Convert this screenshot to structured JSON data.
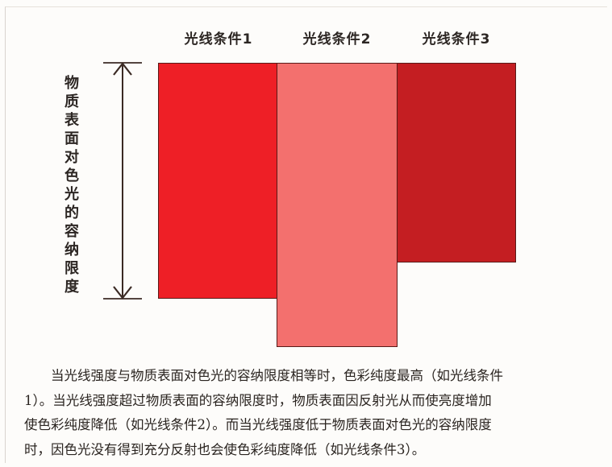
{
  "columns": {
    "c1": {
      "label": "光线条件1",
      "color": "#ee1f26"
    },
    "c2": {
      "label": "光线条件2",
      "color": "#f3706e"
    },
    "c3": {
      "label": "光线条件3",
      "color": "#c41e22"
    }
  },
  "axis_label_chars": [
    "物",
    "质",
    "表",
    "面",
    "对",
    "色",
    "光",
    "的",
    "容",
    "纳",
    "限",
    "度"
  ],
  "caption": {
    "line1": "当光线强度与物质表面对色光的容纳限度相等时，色彩纯度最高（如光线条件",
    "line2": "1）。当光线强度超过物质表面的容纳限度时，物质表面因反射光从而使亮度增加",
    "line3": "使色彩纯度降低（如光线条件2）。而当光线强度低于物质表面对色光的容纳限度",
    "line4": "时，因色光没有得到充分反射也会使色彩纯度降低（如光线条件3）。"
  },
  "colors": {
    "arrow": "#3b2a24",
    "border": "#5a1a18"
  }
}
